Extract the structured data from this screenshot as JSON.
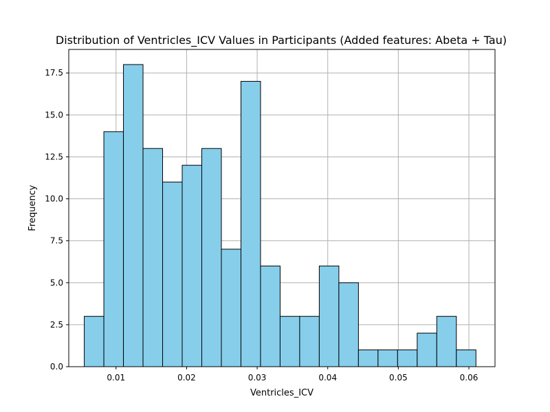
{
  "chart_data": {
    "type": "bar",
    "title": "Distribution of Ventricles_ICV Values in Participants (Added features: Abeta + Tau)",
    "xlabel": "Ventricles_ICV",
    "ylabel": "Frequency",
    "xlim": [
      0.0033,
      0.0637
    ],
    "ylim": [
      0,
      18.9
    ],
    "grid": true,
    "bar_color": "#87ceeb",
    "edge_color": "#000000",
    "bin_start": 0.0055,
    "bin_width": 0.002775,
    "values": [
      3,
      14,
      18,
      13,
      11,
      12,
      13,
      7,
      17,
      6,
      3,
      3,
      6,
      5,
      1,
      1,
      1,
      2,
      3,
      1
    ],
    "x_ticks": [
      "0.01",
      "0.02",
      "0.03",
      "0.04",
      "0.05",
      "0.06"
    ],
    "y_ticks": [
      "0.0",
      "2.5",
      "5.0",
      "7.5",
      "10.0",
      "12.5",
      "15.0",
      "17.5"
    ]
  }
}
